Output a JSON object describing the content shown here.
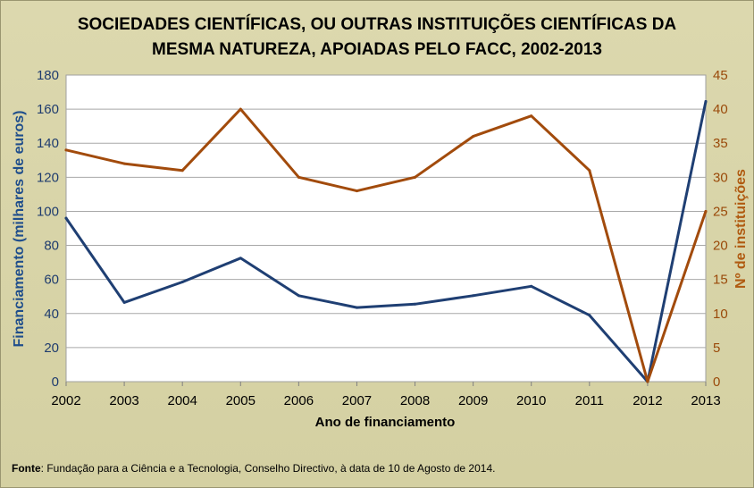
{
  "chart_data": {
    "type": "line",
    "title_lines": [
      "SOCIEDADES CIENTÍFICAS, OU OUTRAS INSTITUIÇÕES CIENTÍFICAS DA",
      "MESMA NATUREZA, APOIADAS PELO FACC, 2002-2013"
    ],
    "xlabel": "Ano de financiamento",
    "ylabel": "Financiamento (milhares de euros)",
    "y2label": "Nº de instituições",
    "x": [
      "2002",
      "2003",
      "2004",
      "2005",
      "2006",
      "2007",
      "2008",
      "2009",
      "2010",
      "2011",
      "2012",
      "2013"
    ],
    "ylim": [
      0,
      180
    ],
    "yticks": [
      0,
      20,
      40,
      60,
      80,
      100,
      120,
      140,
      160,
      180
    ],
    "y2lim": [
      0,
      45
    ],
    "y2ticks": [
      0,
      5,
      10,
      15,
      20,
      25,
      30,
      35,
      40,
      45
    ],
    "grid": true,
    "legend": "none",
    "series": [
      {
        "axis": "left",
        "color": "#1f3f73",
        "values": [
          96,
          46.5,
          58.5,
          72.5,
          50.5,
          43.5,
          45.5,
          50.5,
          56,
          39,
          0,
          164.5
        ]
      },
      {
        "axis": "right",
        "color": "#a24b0c",
        "values": [
          34,
          32,
          31,
          40,
          30,
          28,
          30,
          36,
          39,
          31,
          0,
          25
        ]
      }
    ]
  },
  "source": {
    "label": "Fonte",
    "text": ": Fundação para a Ciência e a Tecnologia, Conselho Directivo, à data de 10 de Agosto de 2014."
  }
}
